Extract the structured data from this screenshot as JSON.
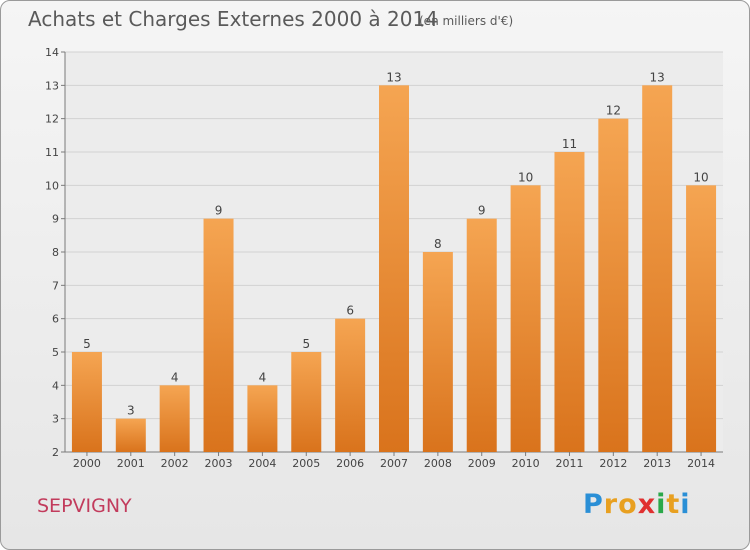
{
  "chart_data": {
    "type": "bar",
    "title": "Achats et Charges Externes 2000 à 2014",
    "subtitle": "(en milliers d'€)",
    "categories": [
      "2000",
      "2001",
      "2002",
      "2003",
      "2004",
      "2005",
      "2006",
      "2007",
      "2008",
      "2009",
      "2010",
      "2011",
      "2012",
      "2013",
      "2014"
    ],
    "values": [
      5,
      3,
      4,
      9,
      4,
      5,
      6,
      13,
      8,
      9,
      10,
      11,
      12,
      13,
      10
    ],
    "data_labels": [
      "5",
      "3",
      "4",
      "9",
      "4",
      "5",
      "6",
      "13",
      "8",
      "9",
      "10",
      "11",
      "12",
      "13",
      "10"
    ],
    "yticks": [
      "2",
      "3",
      "4",
      "5",
      "6",
      "7",
      "8",
      "9",
      "10",
      "11",
      "12",
      "13",
      "14"
    ],
    "ylim": [
      2,
      14
    ],
    "grid": true,
    "bar_color_top": "#f5a552",
    "bar_color_bottom": "#d9731c"
  },
  "footer": {
    "commune": "SEPVIGNY",
    "logo_letters": [
      "P",
      "r",
      "o",
      "x",
      "i",
      "t",
      "i"
    ],
    "logo_colors": [
      "#2a8fd6",
      "#e8a020",
      "#e8a020",
      "#e03030",
      "#2aa84a",
      "#e8a020",
      "#2a8fd6"
    ]
  }
}
